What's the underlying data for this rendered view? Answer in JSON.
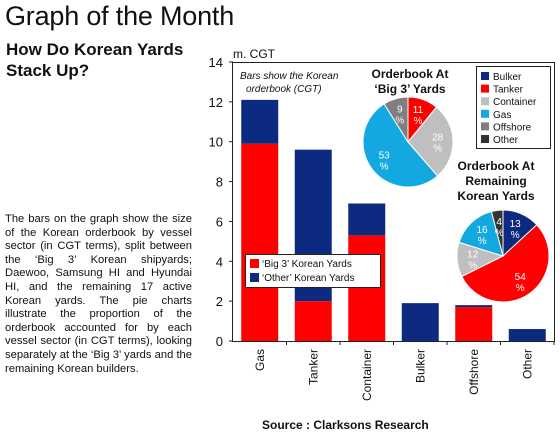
{
  "header": {
    "title": "Graph of the Month"
  },
  "panel": {
    "title": "How Do Korean Yards Stack Up?",
    "description": "The bars on the graph show the size of the Korean orderbook by vessel sector (in CGT terms), split between the ‘Big 3’ Korean shipyards; Daewoo, Samsung HI and Hyundai HI, and the remaining 17 active Korean yards. The pie charts illustrate the proportion of the orderbook accounted for by each vessel sector (in CGT terms), looking separately at the ‘Big 3’ yards and the remaining Korean builders."
  },
  "source": "Source : Clarksons Research",
  "colors": {
    "big3": "#ff0000",
    "other": "#0c2a80",
    "Bulker": "#0c2a80",
    "Tanker": "#ff0000",
    "Container": "#bfbfbf",
    "Gas": "#13a8e0",
    "Offshore": "#7f7f7f",
    "Other": "#333333"
  },
  "chart_data": [
    {
      "type": "bar",
      "stacked": true,
      "ylabel": "m. CGT",
      "annotation": "Bars show the Korean orderbook (CGT)",
      "ylim": [
        0,
        14
      ],
      "yticks": [
        0,
        2,
        4,
        6,
        8,
        10,
        12,
        14
      ],
      "categories": [
        "Gas",
        "Tanker",
        "Container",
        "Bulker",
        "Offshore",
        "Other"
      ],
      "series": [
        {
          "name": "‘Big 3’ Korean Yards",
          "values": [
            9.9,
            2.0,
            5.3,
            0.0,
            1.7,
            0.0
          ]
        },
        {
          "name": "‘Other’ Korean Yards",
          "values": [
            2.2,
            7.6,
            1.6,
            1.9,
            0.1,
            0.6
          ]
        }
      ],
      "legend": "lower-middle"
    },
    {
      "type": "pie",
      "title": "Orderbook At ‘Big 3’ Yards",
      "slices": [
        {
          "label": "Tanker",
          "value": 11
        },
        {
          "label": "Container",
          "value": 28
        },
        {
          "label": "Gas",
          "value": 53
        },
        {
          "label": "Offshore",
          "value": 9
        }
      ]
    },
    {
      "type": "pie",
      "title": "Orderbook At Remaining Korean Yards",
      "slices": [
        {
          "label": "Bulker",
          "value": 13
        },
        {
          "label": "Tanker",
          "value": 54
        },
        {
          "label": "Container",
          "value": 12
        },
        {
          "label": "Gas",
          "value": 16
        },
        {
          "label": "Other",
          "value": 4
        }
      ]
    }
  ],
  "pie_legend": [
    "Bulker",
    "Tanker",
    "Container",
    "Gas",
    "Offshore",
    "Other"
  ]
}
